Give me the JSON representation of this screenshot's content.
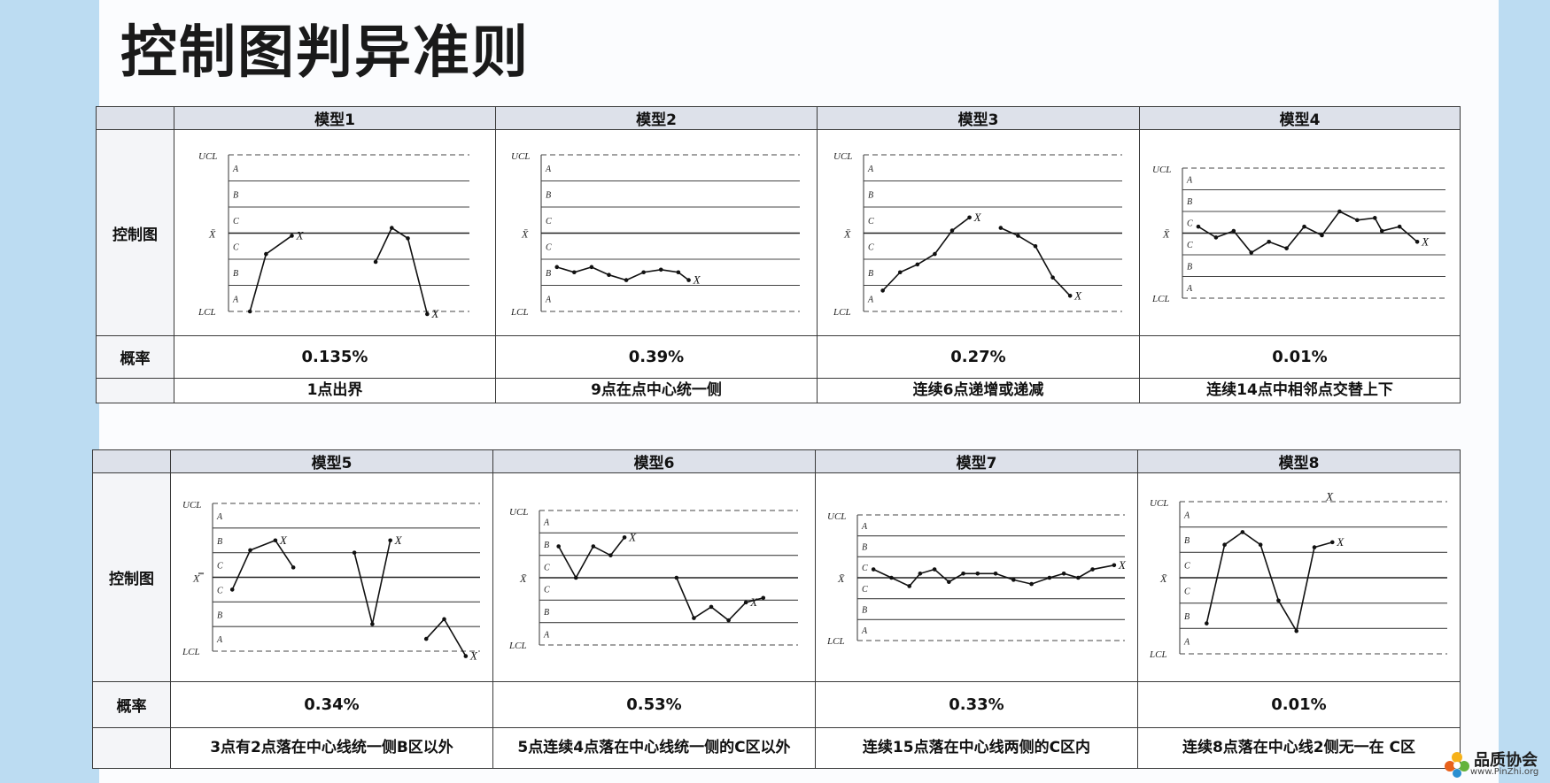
{
  "title": "控制图判异准则",
  "row_labels": {
    "chart": "控制图",
    "prob": "概率"
  },
  "axis_labels": {
    "ucl": "UCL",
    "lcl": "LCL",
    "center": "X̄",
    "center2": "X̿",
    "zones": [
      "A",
      "B",
      "C",
      "C",
      "B",
      "A"
    ],
    "zones_m4": [
      "A",
      "B",
      "C",
      "C",
      "B",
      "A"
    ],
    "x": "X"
  },
  "tables": [
    {
      "models": [
        {
          "name": "模型1",
          "prob": "0.135%",
          "rule": "1点出界"
        },
        {
          "name": "模型2",
          "prob": "0.39%",
          "rule": "9点在点中心统一侧"
        },
        {
          "name": "模型3",
          "prob": "0.27%",
          "rule": "连续6点递增或递减"
        },
        {
          "name": "模型4",
          "prob": "0.01%",
          "rule": "连续14点中相邻点交替上下"
        }
      ]
    },
    {
      "models": [
        {
          "name": "模型5",
          "prob": "0.34%",
          "rule": "3点有2点落在中心线统一侧B区以外"
        },
        {
          "name": "模型6",
          "prob": "0.53%",
          "rule": "5点连续4点落在中心线统一侧的C区以外"
        },
        {
          "name": "模型7",
          "prob": "0.33%",
          "rule": "连续15点落在中心线两侧的C区内"
        },
        {
          "name": "模型8",
          "prob": "0.01%",
          "rule": "连续8点落在中心线2侧无一在 C区"
        }
      ]
    }
  ],
  "charts": [
    {
      "model": "模型1",
      "segments": [
        [
          [
            0.5,
            0.0
          ],
          [
            1.0,
            2.2
          ],
          [
            1.8,
            2.9
          ]
        ],
        [
          [
            4.4,
            1.9
          ],
          [
            4.9,
            3.2
          ],
          [
            5.4,
            2.8
          ],
          [
            6.0,
            -0.1
          ]
        ]
      ],
      "x_marks": [
        [
          1.8,
          2.9
        ],
        [
          6.0,
          -0.1
        ]
      ]
    },
    {
      "model": "模型2",
      "segments": [
        [
          [
            0.3,
            1.7
          ],
          [
            0.8,
            1.5
          ],
          [
            1.3,
            1.7
          ],
          [
            1.8,
            1.4
          ],
          [
            2.3,
            1.2
          ],
          [
            2.8,
            1.5
          ],
          [
            3.3,
            1.6
          ],
          [
            3.8,
            1.5
          ],
          [
            4.1,
            1.2
          ]
        ]
      ],
      "x_marks": [
        [
          4.1,
          1.2
        ]
      ]
    },
    {
      "model": "模型3",
      "segments": [
        [
          [
            0.4,
            0.8
          ],
          [
            0.9,
            1.5
          ],
          [
            1.4,
            1.8
          ],
          [
            1.9,
            2.2
          ],
          [
            2.4,
            3.1
          ],
          [
            2.9,
            3.6
          ]
        ],
        [
          [
            3.8,
            3.2
          ],
          [
            4.3,
            2.9
          ],
          [
            4.8,
            2.5
          ],
          [
            5.3,
            1.3
          ],
          [
            5.8,
            0.6
          ]
        ]
      ],
      "x_marks": [
        [
          2.9,
          3.6
        ],
        [
          5.8,
          0.6
        ]
      ]
    },
    {
      "model": "模型4",
      "segments": [
        [
          [
            0.3,
            3.3
          ],
          [
            0.8,
            2.8
          ],
          [
            1.3,
            3.1
          ],
          [
            1.8,
            2.1
          ],
          [
            2.3,
            2.6
          ],
          [
            2.8,
            2.3
          ],
          [
            3.3,
            3.3
          ],
          [
            3.8,
            2.9
          ],
          [
            4.3,
            4.0
          ],
          [
            4.8,
            3.6
          ],
          [
            5.3,
            3.7
          ],
          [
            5.5,
            3.1
          ],
          [
            6.0,
            3.3
          ],
          [
            6.5,
            2.6
          ]
        ]
      ],
      "x_marks": [
        [
          6.5,
          2.6
        ]
      ]
    },
    {
      "model": "模型5",
      "segments": [
        [
          [
            0.4,
            2.5
          ],
          [
            0.9,
            4.1
          ],
          [
            1.6,
            4.5
          ],
          [
            2.1,
            3.4
          ]
        ],
        [
          [
            3.8,
            4.0
          ],
          [
            4.3,
            1.1
          ],
          [
            4.8,
            4.5
          ]
        ],
        [
          [
            5.8,
            0.5
          ],
          [
            6.3,
            1.3
          ],
          [
            6.9,
            -0.2
          ]
        ]
      ],
      "x_marks": [
        [
          1.6,
          4.5
        ],
        [
          4.8,
          4.5
        ],
        [
          6.9,
          -0.2
        ]
      ]
    },
    {
      "model": "模型6",
      "segments": [
        [
          [
            0.4,
            4.4
          ],
          [
            0.9,
            3.0
          ],
          [
            1.4,
            4.4
          ],
          [
            1.9,
            4.0
          ],
          [
            2.3,
            4.8
          ]
        ],
        [
          [
            3.8,
            3.0
          ],
          [
            4.3,
            1.2
          ],
          [
            4.8,
            1.7
          ],
          [
            5.3,
            1.1
          ],
          [
            5.8,
            1.9
          ],
          [
            6.3,
            2.1
          ]
        ]
      ],
      "x_marks": [
        [
          2.3,
          4.8
        ],
        [
          5.8,
          1.9
        ]
      ]
    },
    {
      "model": "模型7",
      "segments": [
        [
          [
            0.3,
            3.4
          ],
          [
            0.8,
            3.0
          ],
          [
            1.3,
            2.6
          ],
          [
            1.6,
            3.2
          ],
          [
            2.0,
            3.4
          ],
          [
            2.4,
            2.8
          ],
          [
            2.8,
            3.2
          ],
          [
            3.2,
            3.2
          ],
          [
            3.7,
            3.2
          ],
          [
            4.2,
            2.9
          ],
          [
            4.7,
            2.7
          ],
          [
            5.2,
            3.0
          ],
          [
            5.6,
            3.2
          ],
          [
            6.0,
            3.0
          ],
          [
            6.4,
            3.4
          ],
          [
            7.0,
            3.6
          ]
        ]
      ],
      "x_marks": [
        [
          7.0,
          3.6
        ]
      ]
    },
    {
      "model": "模型8",
      "segments": [
        [
          [
            0.6,
            1.2
          ],
          [
            1.1,
            4.3
          ],
          [
            1.6,
            4.8
          ],
          [
            2.1,
            4.3
          ],
          [
            2.6,
            2.1
          ],
          [
            3.1,
            0.9
          ],
          [
            3.6,
            4.2
          ],
          [
            4.1,
            4.4
          ]
        ]
      ],
      "x_marks": [
        [
          4.1,
          4.4
        ],
        [
          3.8,
          6.2
        ]
      ]
    }
  ]
}
